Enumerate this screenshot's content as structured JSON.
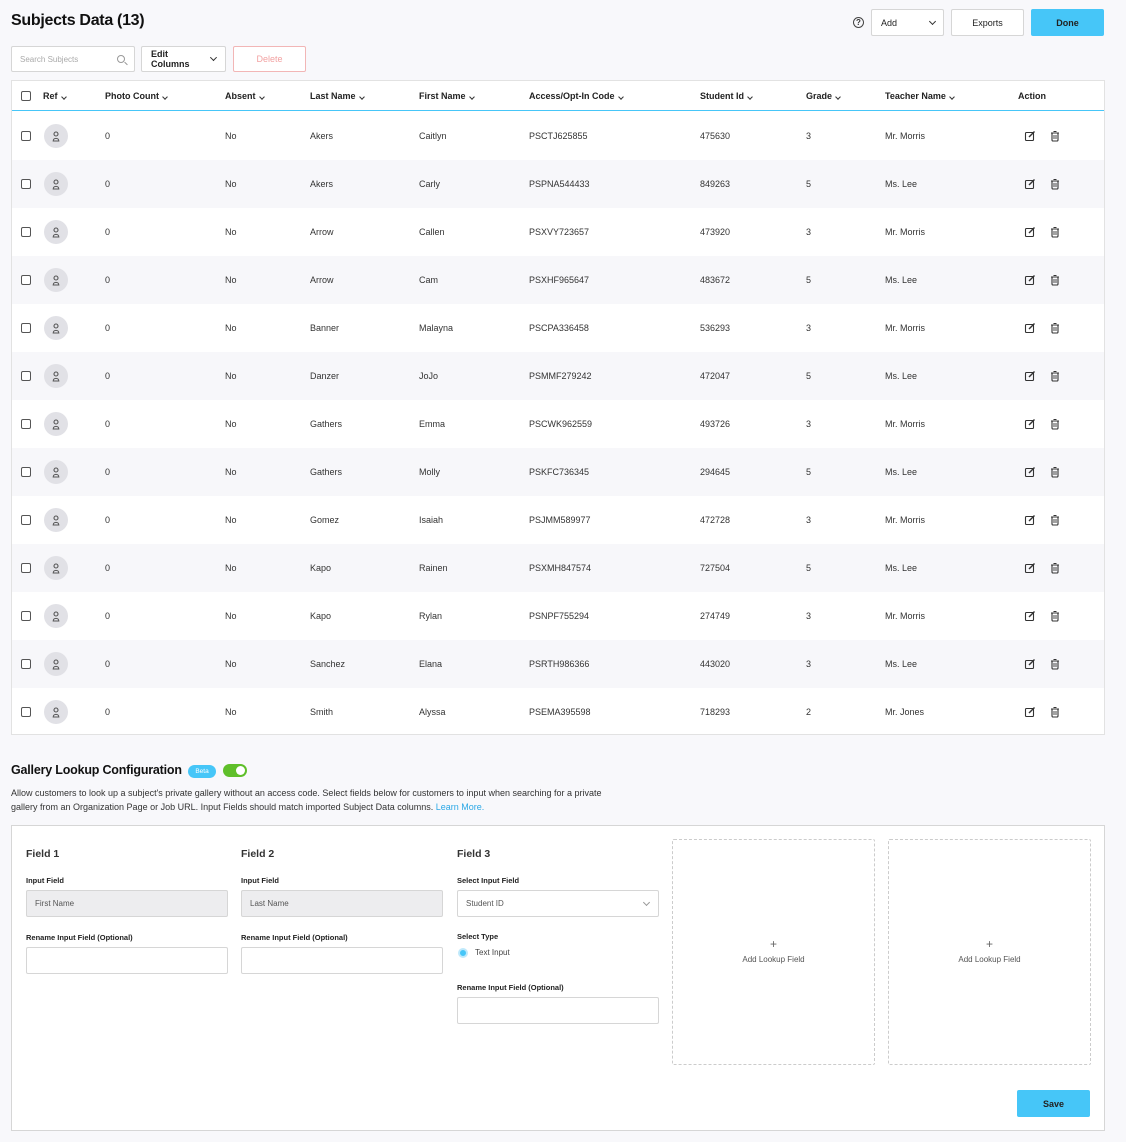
{
  "page": {
    "title": "Subjects Data (13)"
  },
  "toolbar": {
    "help_icon": "question-circle-icon",
    "add_label": "Add",
    "exports_label": "Exports",
    "done_label": "Done",
    "search_placeholder": "Search Subjects",
    "edit_columns_label": "Edit Columns",
    "delete_label": "Delete"
  },
  "table": {
    "columns": [
      "Ref",
      "Photo Count",
      "Absent",
      "Last Name",
      "First Name",
      "Access/Opt-In Code",
      "Student Id",
      "Grade",
      "Teacher Name",
      "Action"
    ],
    "rows": [
      {
        "photo_count": "0",
        "absent": "No",
        "last_name": "Akers",
        "first_name": "Caitlyn",
        "code": "PSCTJ625855",
        "student_id": "475630",
        "grade": "3",
        "teacher": "Mr. Morris"
      },
      {
        "photo_count": "0",
        "absent": "No",
        "last_name": "Akers",
        "first_name": "Carly",
        "code": "PSPNA544433",
        "student_id": "849263",
        "grade": "5",
        "teacher": "Ms. Lee"
      },
      {
        "photo_count": "0",
        "absent": "No",
        "last_name": "Arrow",
        "first_name": "Callen",
        "code": "PSXVY723657",
        "student_id": "473920",
        "grade": "3",
        "teacher": "Mr. Morris"
      },
      {
        "photo_count": "0",
        "absent": "No",
        "last_name": "Arrow",
        "first_name": "Cam",
        "code": "PSXHF965647",
        "student_id": "483672",
        "grade": "5",
        "teacher": "Ms. Lee"
      },
      {
        "photo_count": "0",
        "absent": "No",
        "last_name": "Banner",
        "first_name": "Malayna",
        "code": "PSCPA336458",
        "student_id": "536293",
        "grade": "3",
        "teacher": "Mr. Morris"
      },
      {
        "photo_count": "0",
        "absent": "No",
        "last_name": "Danzer",
        "first_name": "JoJo",
        "code": "PSMMF279242",
        "student_id": "472047",
        "grade": "5",
        "teacher": "Ms. Lee"
      },
      {
        "photo_count": "0",
        "absent": "No",
        "last_name": "Gathers",
        "first_name": "Emma",
        "code": "PSCWK962559",
        "student_id": "493726",
        "grade": "3",
        "teacher": "Mr. Morris"
      },
      {
        "photo_count": "0",
        "absent": "No",
        "last_name": "Gathers",
        "first_name": "Molly",
        "code": "PSKFC736345",
        "student_id": "294645",
        "grade": "5",
        "teacher": "Ms. Lee"
      },
      {
        "photo_count": "0",
        "absent": "No",
        "last_name": "Gomez",
        "first_name": "Isaiah",
        "code": "PSJMM589977",
        "student_id": "472728",
        "grade": "3",
        "teacher": "Mr. Morris"
      },
      {
        "photo_count": "0",
        "absent": "No",
        "last_name": "Kapo",
        "first_name": "Rainen",
        "code": "PSXMH847574",
        "student_id": "727504",
        "grade": "5",
        "teacher": "Ms. Lee"
      },
      {
        "photo_count": "0",
        "absent": "No",
        "last_name": "Kapo",
        "first_name": "Rylan",
        "code": "PSNPF755294",
        "student_id": "274749",
        "grade": "3",
        "teacher": "Mr. Morris"
      },
      {
        "photo_count": "0",
        "absent": "No",
        "last_name": "Sanchez",
        "first_name": "Elana",
        "code": "PSRTH986366",
        "student_id": "443020",
        "grade": "3",
        "teacher": "Ms. Lee"
      },
      {
        "photo_count": "0",
        "absent": "No",
        "last_name": "Smith",
        "first_name": "Alyssa",
        "code": "PSEMA395598",
        "student_id": "718293",
        "grade": "2",
        "teacher": "Mr. Jones"
      }
    ]
  },
  "gallery": {
    "title": "Gallery Lookup Configuration",
    "beta": "Beta",
    "toggle_on": true,
    "description": "Allow customers to look up a subject's private gallery without an access code. Select fields below for customers to input when searching for a private gallery from an Organization Page or Job URL. Input Fields should match imported Subject Data columns.",
    "learn_more": "Learn More.",
    "field1": {
      "title": "Field 1",
      "input_label": "Input Field",
      "input_value": "First Name",
      "rename_label": "Rename Input Field (Optional)"
    },
    "field2": {
      "title": "Field 2",
      "input_label": "Input Field",
      "input_value": "Last Name",
      "rename_label": "Rename Input Field (Optional)"
    },
    "field3": {
      "title": "Field 3",
      "select_label": "Select Input Field",
      "select_value": "Student ID",
      "type_label": "Select Type",
      "type_option": "Text Input",
      "rename_label": "Rename Input Field (Optional)"
    },
    "add_lookup_plus": "+",
    "add_lookup_label": "Add Lookup Field",
    "save_label": "Save"
  },
  "colors": {
    "accent": "#46c6f8",
    "toggle": "#5fbf2a",
    "delete": "#f2a2a2"
  }
}
